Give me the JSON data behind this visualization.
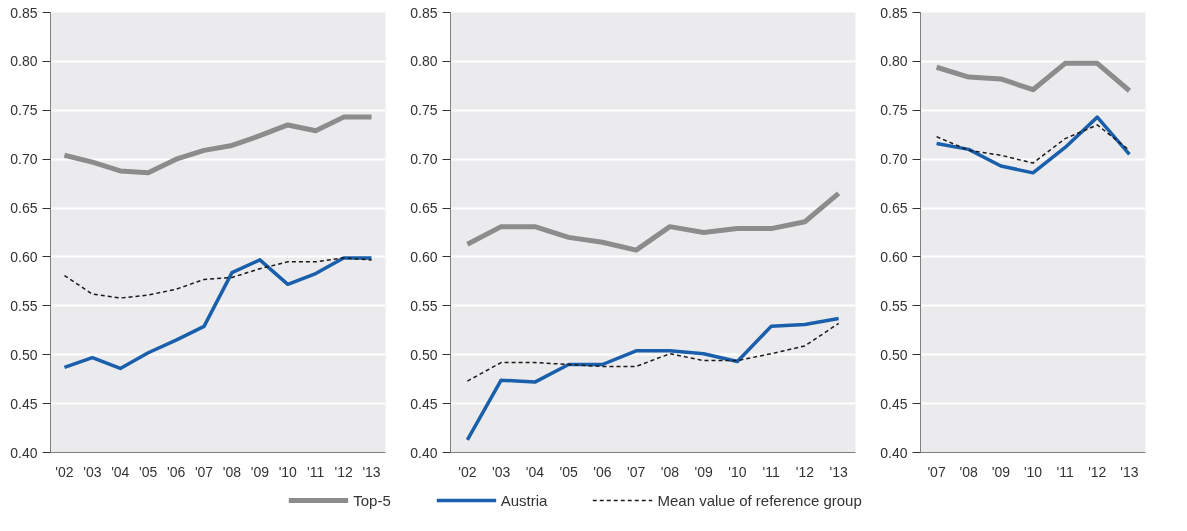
{
  "chart_data": [
    {
      "type": "line",
      "categories": [
        "'02",
        "'03",
        "'04",
        "'05",
        "'06",
        "'07",
        "'08",
        "'09",
        "'10",
        "'11",
        "'12",
        "'13"
      ],
      "ylim": [
        0.4,
        0.85
      ],
      "yticks": [
        {
          "value": 0.4,
          "label": "0.40"
        },
        {
          "value": 0.45,
          "label": "0.45"
        },
        {
          "value": 0.5,
          "label": "0.50"
        },
        {
          "value": 0.55,
          "label": "0.55"
        },
        {
          "value": 0.6,
          "label": "0.60"
        },
        {
          "value": 0.65,
          "label": "0.65"
        },
        {
          "value": 0.7,
          "label": "0.70"
        },
        {
          "value": 0.75,
          "label": "0.75"
        },
        {
          "value": 0.8,
          "label": "0.80"
        },
        {
          "value": 0.85,
          "label": "0.85"
        }
      ],
      "grid": "y",
      "marker": "none",
      "series": [
        {
          "color": "#8c8c8c",
          "values": [
            0.704,
            0.697,
            0.688,
            0.686,
            0.7,
            0.709,
            0.714,
            0.724,
            0.735,
            0.729,
            0.743,
            0.743
          ]
        },
        {
          "color": "#1a5fab",
          "values": [
            0.487,
            0.497,
            0.486,
            0.502,
            0.515,
            0.529,
            0.584,
            0.597,
            0.572,
            0.583,
            0.599,
            0.599
          ]
        },
        {
          "color": "#1a1a1a",
          "line_style": "dashed",
          "values": [
            0.581,
            0.562,
            0.558,
            0.561,
            0.567,
            0.577,
            0.579,
            0.588,
            0.595,
            0.595,
            0.599,
            0.597
          ]
        }
      ]
    },
    {
      "type": "line",
      "categories": [
        "'02",
        "'03",
        "'04",
        "'05",
        "'06",
        "'07",
        "'08",
        "'09",
        "'10",
        "'11",
        "'12",
        "'13"
      ],
      "ylim": [
        0.4,
        0.85
      ],
      "yticks": [
        {
          "value": 0.4,
          "label": "0.40"
        },
        {
          "value": 0.45,
          "label": "0.45"
        },
        {
          "value": 0.5,
          "label": "0.50"
        },
        {
          "value": 0.55,
          "label": "0.55"
        },
        {
          "value": 0.6,
          "label": "0.60"
        },
        {
          "value": 0.65,
          "label": "0.65"
        },
        {
          "value": 0.7,
          "label": "0.70"
        },
        {
          "value": 0.75,
          "label": "0.75"
        },
        {
          "value": 0.8,
          "label": "0.80"
        },
        {
          "value": 0.85,
          "label": "0.85"
        }
      ],
      "grid": "y",
      "marker": "none",
      "legend": "bottom",
      "series": [
        {
          "name": "Top-5",
          "color": "#8c8c8c",
          "values": [
            0.613,
            0.631,
            0.631,
            0.62,
            0.615,
            0.607,
            0.631,
            0.625,
            0.629,
            0.629,
            0.636,
            0.665
          ]
        },
        {
          "name": "Austria",
          "color": "#1a5fab",
          "values": [
            0.413,
            0.474,
            0.472,
            0.49,
            0.49,
            0.504,
            0.504,
            0.501,
            0.493,
            0.529,
            0.531,
            0.537
          ]
        },
        {
          "name": "Mean value of reference group",
          "color": "#1a1a1a",
          "line_style": "dashed",
          "values": [
            0.473,
            0.492,
            0.492,
            0.49,
            0.488,
            0.488,
            0.501,
            0.494,
            0.494,
            0.501,
            0.509,
            0.532
          ]
        }
      ]
    },
    {
      "type": "line",
      "categories": [
        "'07",
        "'08",
        "'09",
        "'10",
        "'11",
        "'12",
        "'13"
      ],
      "ylim": [
        0.4,
        0.85
      ],
      "yticks": [
        {
          "value": 0.4,
          "label": "0.40"
        },
        {
          "value": 0.45,
          "label": "0.45"
        },
        {
          "value": 0.5,
          "label": "0.50"
        },
        {
          "value": 0.55,
          "label": "0.55"
        },
        {
          "value": 0.6,
          "label": "0.60"
        },
        {
          "value": 0.65,
          "label": "0.65"
        },
        {
          "value": 0.7,
          "label": "0.70"
        },
        {
          "value": 0.75,
          "label": "0.75"
        },
        {
          "value": 0.8,
          "label": "0.80"
        },
        {
          "value": 0.85,
          "label": "0.85"
        }
      ],
      "grid": "y",
      "marker": "none",
      "series": [
        {
          "color": "#8c8c8c",
          "values": [
            0.794,
            0.784,
            0.782,
            0.771,
            0.798,
            0.798,
            0.77
          ]
        },
        {
          "color": "#1a5fab",
          "values": [
            0.716,
            0.71,
            0.693,
            0.686,
            0.712,
            0.743,
            0.705
          ]
        },
        {
          "color": "#1a1a1a",
          "line_style": "dashed",
          "values": [
            0.723,
            0.709,
            0.704,
            0.696,
            0.721,
            0.735,
            0.709
          ]
        }
      ]
    }
  ]
}
